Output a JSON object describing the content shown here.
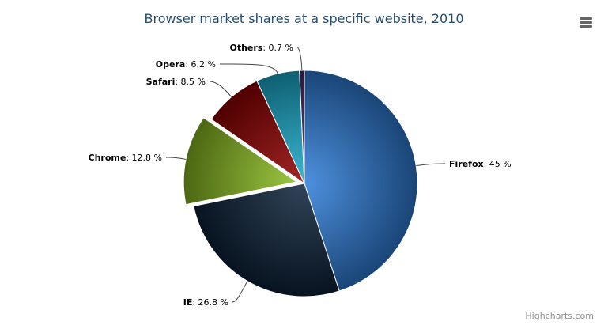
{
  "chart_data": {
    "type": "pie",
    "title": "Browser market shares at a specific website, 2010",
    "label_format": "%",
    "slices": [
      {
        "name": "Firefox",
        "value": 45.0,
        "label": "45 %",
        "color": "#2f7ed8",
        "sliced": false
      },
      {
        "name": "IE",
        "value": 26.8,
        "label": "26.8 %",
        "color": "#0d233a",
        "sliced": false
      },
      {
        "name": "Chrome",
        "value": 12.8,
        "label": "12.8 %",
        "color": "#8bbc21",
        "sliced": true
      },
      {
        "name": "Safari",
        "value": 8.5,
        "label": "8.5 %",
        "color": "#910000",
        "sliced": false
      },
      {
        "name": "Opera",
        "value": 6.2,
        "label": "6.2 %",
        "color": "#1aadce",
        "sliced": false
      },
      {
        "name": "Others",
        "value": 0.7,
        "label": "0.7 %",
        "color": "#492970",
        "sliced": false
      }
    ]
  },
  "menu_icon": "hamburger-menu-icon",
  "credits": "Highcharts.com"
}
